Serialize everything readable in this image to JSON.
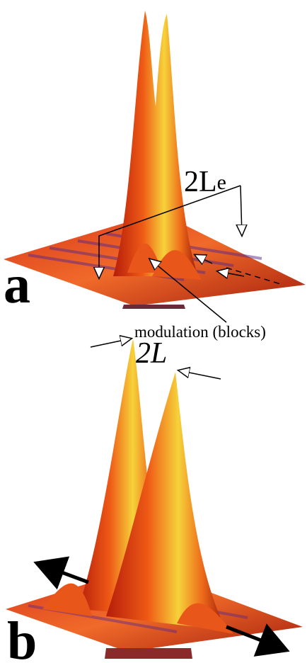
{
  "panel_a": {
    "label": "a",
    "width_label": {
      "main": "2L",
      "subscript": "e"
    },
    "annotation": "modulation (blocks)"
  },
  "panel_b": {
    "label": "b",
    "width_label": "2L"
  }
}
